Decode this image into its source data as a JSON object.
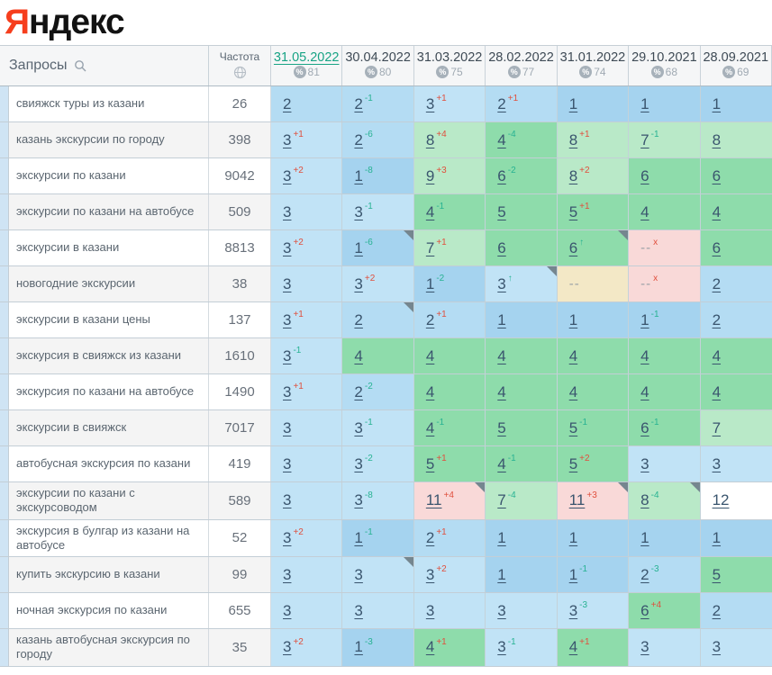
{
  "logo": {
    "red": "Я",
    "rest": "ндекс"
  },
  "table": {
    "queries_label": "Запросы",
    "frequency_label": "Частота",
    "columns": [
      {
        "date": "31.05.2022",
        "percent": "81",
        "selected": true
      },
      {
        "date": "30.04.2022",
        "percent": "80",
        "selected": false
      },
      {
        "date": "31.03.2022",
        "percent": "75",
        "selected": false
      },
      {
        "date": "28.02.2022",
        "percent": "77",
        "selected": false
      },
      {
        "date": "31.01.2022",
        "percent": "74",
        "selected": false
      },
      {
        "date": "29.10.2021",
        "percent": "68",
        "selected": false
      },
      {
        "date": "28.09.2021",
        "percent": "69",
        "selected": false
      }
    ],
    "rows": [
      {
        "keyword": "свияжск туры из казани",
        "frequency": "26",
        "cells": [
          {
            "v": "2",
            "d": "",
            "bg": "pos2"
          },
          {
            "v": "2",
            "d": "-1",
            "bg": "pos2"
          },
          {
            "v": "3",
            "d": "+1",
            "bg": "pos3"
          },
          {
            "v": "2",
            "d": "+1",
            "bg": "pos2"
          },
          {
            "v": "1",
            "d": "",
            "bg": "pos1"
          },
          {
            "v": "1",
            "d": "",
            "bg": "pos1"
          },
          {
            "v": "1",
            "d": "",
            "bg": "pos1"
          }
        ]
      },
      {
        "keyword": "казань экскурсии по городу",
        "frequency": "398",
        "cells": [
          {
            "v": "3",
            "d": "+1",
            "bg": "pos3"
          },
          {
            "v": "2",
            "d": "-6",
            "bg": "pos2"
          },
          {
            "v": "8",
            "d": "+4",
            "bg": "gl"
          },
          {
            "v": "4",
            "d": "-4",
            "bg": "gd"
          },
          {
            "v": "8",
            "d": "+1",
            "bg": "gl"
          },
          {
            "v": "7",
            "d": "-1",
            "bg": "gl"
          },
          {
            "v": "8",
            "d": "",
            "bg": "gl"
          }
        ]
      },
      {
        "keyword": "экскурсии по казани",
        "frequency": "9042",
        "cells": [
          {
            "v": "3",
            "d": "+2",
            "bg": "pos3"
          },
          {
            "v": "1",
            "d": "-8",
            "bg": "pos1"
          },
          {
            "v": "9",
            "d": "+3",
            "bg": "gl"
          },
          {
            "v": "6",
            "d": "-2",
            "bg": "gd"
          },
          {
            "v": "8",
            "d": "+2",
            "bg": "gl"
          },
          {
            "v": "6",
            "d": "",
            "bg": "gd"
          },
          {
            "v": "6",
            "d": "",
            "bg": "gd"
          }
        ]
      },
      {
        "keyword": "экскурсии по казани на автобусе",
        "frequency": "509",
        "cells": [
          {
            "v": "3",
            "d": "",
            "bg": "pos3"
          },
          {
            "v": "3",
            "d": "-1",
            "bg": "pos3"
          },
          {
            "v": "4",
            "d": "-1",
            "bg": "gd"
          },
          {
            "v": "5",
            "d": "",
            "bg": "gd"
          },
          {
            "v": "5",
            "d": "+1",
            "bg": "gd"
          },
          {
            "v": "4",
            "d": "",
            "bg": "gd"
          },
          {
            "v": "4",
            "d": "",
            "bg": "gd"
          }
        ]
      },
      {
        "keyword": "экскурсии в казани",
        "frequency": "8813",
        "cells": [
          {
            "v": "3",
            "d": "+2",
            "bg": "pos3"
          },
          {
            "v": "1",
            "d": "-6",
            "bg": "pos1",
            "corner": true
          },
          {
            "v": "7",
            "d": "+1",
            "bg": "gl"
          },
          {
            "v": "6",
            "d": "",
            "bg": "gd"
          },
          {
            "v": "6",
            "d": "↑",
            "bg": "gd",
            "corner": true
          },
          {
            "v": "--",
            "d": "x",
            "bg": "pink"
          },
          {
            "v": "6",
            "d": "",
            "bg": "gd"
          }
        ]
      },
      {
        "keyword": "новогодние экскурсии",
        "frequency": "38",
        "cells": [
          {
            "v": "3",
            "d": "",
            "bg": "pos3"
          },
          {
            "v": "3",
            "d": "+2",
            "bg": "pos3"
          },
          {
            "v": "1",
            "d": "-2",
            "bg": "pos1"
          },
          {
            "v": "3",
            "d": "↑",
            "bg": "pos3",
            "corner": true
          },
          {
            "v": "--",
            "d": "",
            "bg": "yellow"
          },
          {
            "v": "--",
            "d": "x",
            "bg": "pink"
          },
          {
            "v": "2",
            "d": "",
            "bg": "pos2"
          }
        ]
      },
      {
        "keyword": "экскурсии в казани цены",
        "frequency": "137",
        "cells": [
          {
            "v": "3",
            "d": "+1",
            "bg": "pos3"
          },
          {
            "v": "2",
            "d": "",
            "bg": "pos2",
            "corner": true
          },
          {
            "v": "2",
            "d": "+1",
            "bg": "pos2"
          },
          {
            "v": "1",
            "d": "",
            "bg": "pos1"
          },
          {
            "v": "1",
            "d": "",
            "bg": "pos1"
          },
          {
            "v": "1",
            "d": "-1",
            "bg": "pos1"
          },
          {
            "v": "2",
            "d": "",
            "bg": "pos2"
          }
        ]
      },
      {
        "keyword": "экскурсия в свияжск из казани",
        "frequency": "1610",
        "cells": [
          {
            "v": "3",
            "d": "-1",
            "bg": "pos3"
          },
          {
            "v": "4",
            "d": "",
            "bg": "gd"
          },
          {
            "v": "4",
            "d": "",
            "bg": "gd"
          },
          {
            "v": "4",
            "d": "",
            "bg": "gd"
          },
          {
            "v": "4",
            "d": "",
            "bg": "gd"
          },
          {
            "v": "4",
            "d": "",
            "bg": "gd"
          },
          {
            "v": "4",
            "d": "",
            "bg": "gd"
          }
        ]
      },
      {
        "keyword": "экскурсия по казани на автобусе",
        "frequency": "1490",
        "cells": [
          {
            "v": "3",
            "d": "+1",
            "bg": "pos3"
          },
          {
            "v": "2",
            "d": "-2",
            "bg": "pos2"
          },
          {
            "v": "4",
            "d": "",
            "bg": "gd"
          },
          {
            "v": "4",
            "d": "",
            "bg": "gd"
          },
          {
            "v": "4",
            "d": "",
            "bg": "gd"
          },
          {
            "v": "4",
            "d": "",
            "bg": "gd"
          },
          {
            "v": "4",
            "d": "",
            "bg": "gd"
          }
        ]
      },
      {
        "keyword": "экскурсии в свияжск",
        "frequency": "7017",
        "cells": [
          {
            "v": "3",
            "d": "",
            "bg": "pos3"
          },
          {
            "v": "3",
            "d": "-1",
            "bg": "pos3"
          },
          {
            "v": "4",
            "d": "-1",
            "bg": "gd"
          },
          {
            "v": "5",
            "d": "",
            "bg": "gd"
          },
          {
            "v": "5",
            "d": "-1",
            "bg": "gd"
          },
          {
            "v": "6",
            "d": "-1",
            "bg": "gd"
          },
          {
            "v": "7",
            "d": "",
            "bg": "gl"
          }
        ]
      },
      {
        "keyword": "автобусная экскурсия по казани",
        "frequency": "419",
        "cells": [
          {
            "v": "3",
            "d": "",
            "bg": "pos3"
          },
          {
            "v": "3",
            "d": "-2",
            "bg": "pos3"
          },
          {
            "v": "5",
            "d": "+1",
            "bg": "gd"
          },
          {
            "v": "4",
            "d": "-1",
            "bg": "gd"
          },
          {
            "v": "5",
            "d": "+2",
            "bg": "gd"
          },
          {
            "v": "3",
            "d": "",
            "bg": "pos3"
          },
          {
            "v": "3",
            "d": "",
            "bg": "pos3"
          }
        ]
      },
      {
        "keyword": "экскурсии по казани с экскурсоводом",
        "frequency": "589",
        "cells": [
          {
            "v": "3",
            "d": "",
            "bg": "pos3"
          },
          {
            "v": "3",
            "d": "-8",
            "bg": "pos3"
          },
          {
            "v": "11",
            "d": "+4",
            "bg": "pink",
            "corner": true
          },
          {
            "v": "7",
            "d": "-4",
            "bg": "gl"
          },
          {
            "v": "11",
            "d": "+3",
            "bg": "pink",
            "corner": true
          },
          {
            "v": "8",
            "d": "-4",
            "bg": "gl",
            "corner": true
          },
          {
            "v": "12",
            "d": "",
            "bg": "white"
          }
        ]
      },
      {
        "keyword": "экскурсия в булгар из казани на автобусе",
        "frequency": "52",
        "cells": [
          {
            "v": "3",
            "d": "+2",
            "bg": "pos3"
          },
          {
            "v": "1",
            "d": "-1",
            "bg": "pos1"
          },
          {
            "v": "2",
            "d": "+1",
            "bg": "pos2"
          },
          {
            "v": "1",
            "d": "",
            "bg": "pos1"
          },
          {
            "v": "1",
            "d": "",
            "bg": "pos1"
          },
          {
            "v": "1",
            "d": "",
            "bg": "pos1"
          },
          {
            "v": "1",
            "d": "",
            "bg": "pos1"
          }
        ]
      },
      {
        "keyword": "купить экскурсию в казани",
        "frequency": "99",
        "cells": [
          {
            "v": "3",
            "d": "",
            "bg": "pos3"
          },
          {
            "v": "3",
            "d": "",
            "bg": "pos3",
            "corner": true
          },
          {
            "v": "3",
            "d": "+2",
            "bg": "pos3"
          },
          {
            "v": "1",
            "d": "",
            "bg": "pos1"
          },
          {
            "v": "1",
            "d": "-1",
            "bg": "pos1"
          },
          {
            "v": "2",
            "d": "-3",
            "bg": "pos2"
          },
          {
            "v": "5",
            "d": "",
            "bg": "gd"
          }
        ]
      },
      {
        "keyword": "ночная экскурсия по казани",
        "frequency": "655",
        "cells": [
          {
            "v": "3",
            "d": "",
            "bg": "pos3"
          },
          {
            "v": "3",
            "d": "",
            "bg": "pos3"
          },
          {
            "v": "3",
            "d": "",
            "bg": "pos3"
          },
          {
            "v": "3",
            "d": "",
            "bg": "pos3"
          },
          {
            "v": "3",
            "d": "-3",
            "bg": "pos3"
          },
          {
            "v": "6",
            "d": "+4",
            "bg": "gd"
          },
          {
            "v": "2",
            "d": "",
            "bg": "pos2"
          }
        ]
      },
      {
        "keyword": "казань автобусная экскурсия по городу",
        "frequency": "35",
        "cells": [
          {
            "v": "3",
            "d": "+2",
            "bg": "pos3"
          },
          {
            "v": "1",
            "d": "-3",
            "bg": "pos1"
          },
          {
            "v": "4",
            "d": "+1",
            "bg": "gd"
          },
          {
            "v": "3",
            "d": "-1",
            "bg": "pos3"
          },
          {
            "v": "4",
            "d": "+1",
            "bg": "gd"
          },
          {
            "v": "3",
            "d": "",
            "bg": "pos3"
          },
          {
            "v": "3",
            "d": "",
            "bg": "pos3"
          }
        ]
      }
    ]
  },
  "colors": {
    "pos1": "#a5d3ef",
    "pos2": "#b4dcf3",
    "pos3": "#c1e3f6",
    "gd": "#8edcab",
    "gl": "#b9e9c8",
    "pink": "#f9d9d8",
    "yellow": "#f3e8c6",
    "white": "#ffffff",
    "change_up": "#e04f3d",
    "change_down": "#27b292",
    "selected_date": "#17a384",
    "logo_red": "#f63e1d"
  },
  "icons": {
    "search": "search-icon",
    "globe": "globe-icon",
    "percent": "percent-icon",
    "corner": "corner-marker-icon"
  }
}
